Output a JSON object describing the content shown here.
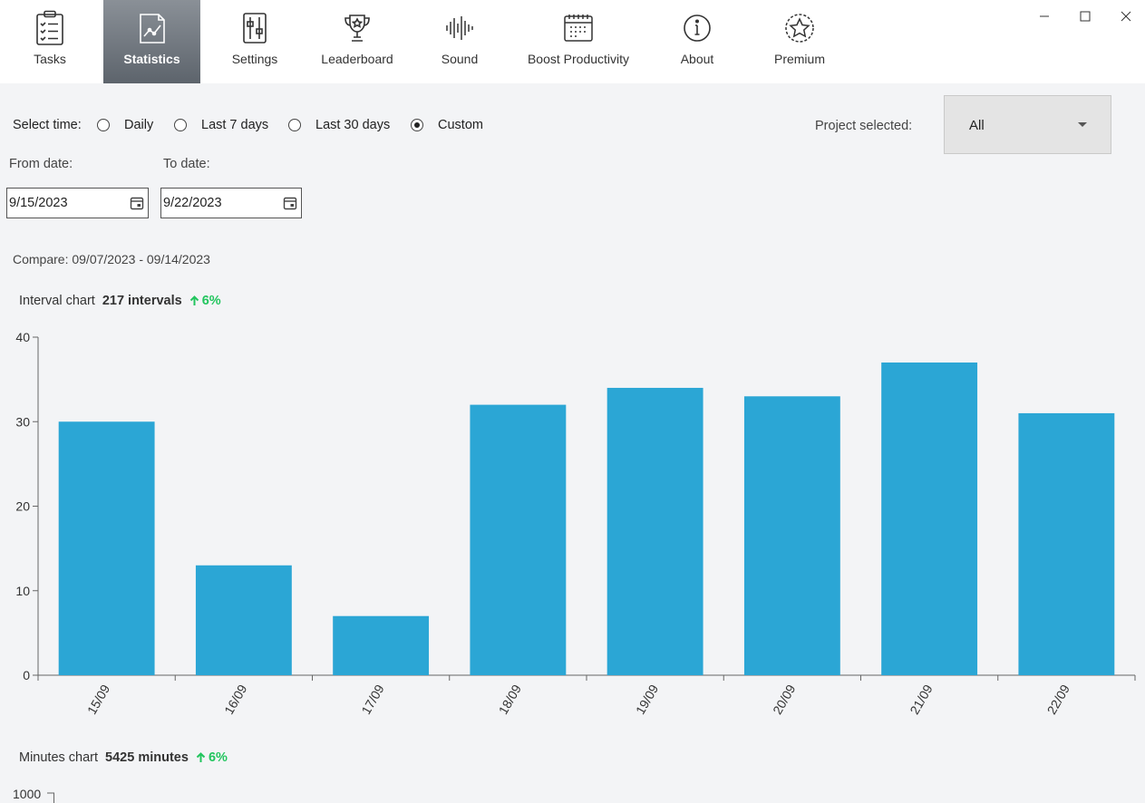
{
  "nav": {
    "tabs": [
      {
        "label": "Tasks",
        "icon": "clipboard-checklist-icon"
      },
      {
        "label": "Statistics",
        "icon": "chart-icon",
        "active": true
      },
      {
        "label": "Settings",
        "icon": "sliders-icon"
      },
      {
        "label": "Leaderboard",
        "icon": "trophy-icon"
      },
      {
        "label": "Sound",
        "icon": "sound-wave-icon"
      },
      {
        "label": "Boost Productivity",
        "icon": "calendar-icon"
      },
      {
        "label": "About",
        "icon": "info-icon"
      },
      {
        "label": "Premium",
        "icon": "star-badge-icon"
      }
    ]
  },
  "filters": {
    "select_time_label": "Select time:",
    "options": [
      "Daily",
      "Last 7 days",
      "Last 30 days",
      "Custom"
    ],
    "selected": "Custom",
    "project_label": "Project selected:",
    "project_value": "All",
    "from_label": "From date:",
    "to_label": "To date:",
    "from_value": "9/15/2023",
    "to_value": "9/22/2023",
    "compare_text": "Compare: 09/07/2023 - 09/14/2023"
  },
  "interval_chart": {
    "title": "Interval chart",
    "count": "217 intervals",
    "change": "6%"
  },
  "minutes_chart": {
    "title": "Minutes chart",
    "count": "5425 minutes",
    "change": "6%",
    "ytick_top": "1000"
  },
  "colors": {
    "bar": "#2ba6d5",
    "up": "#22c55e"
  },
  "chart_data": {
    "type": "bar",
    "categories": [
      "15/09",
      "16/09",
      "17/09",
      "18/09",
      "19/09",
      "20/09",
      "21/09",
      "22/09"
    ],
    "values": [
      30,
      13,
      7,
      32,
      34,
      33,
      37,
      31
    ],
    "yticks": [
      0,
      10,
      20,
      30,
      40
    ],
    "ylim": [
      0,
      40
    ],
    "title": "",
    "xlabel": "",
    "ylabel": ""
  }
}
